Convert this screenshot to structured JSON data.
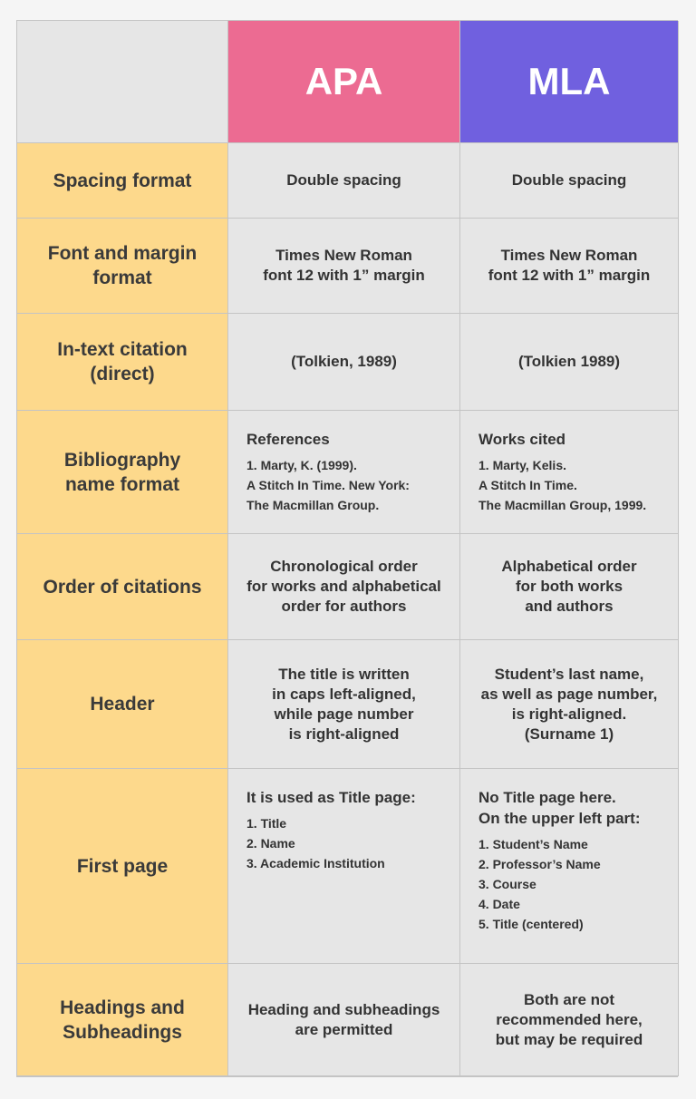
{
  "table": {
    "columns": [
      "APA",
      "MLA"
    ],
    "rows": [
      {
        "label": [
          "Spacing format"
        ],
        "apa": {
          "lines": [
            "Double spacing"
          ]
        },
        "mla": {
          "lines": [
            "Double spacing"
          ]
        }
      },
      {
        "label": [
          "Font and margin",
          "format"
        ],
        "apa": {
          "lines": [
            "Times New Roman",
            "font 12 with 1” margin"
          ]
        },
        "mla": {
          "lines": [
            "Times New Roman",
            "font 12 with 1” margin"
          ]
        }
      },
      {
        "label": [
          "In-text citation",
          "(direct)"
        ],
        "apa": {
          "lines": [
            "(Tolkien, 1989)"
          ]
        },
        "mla": {
          "lines": [
            "(Tolkien 1989)"
          ]
        }
      },
      {
        "label": [
          "Bibliography",
          "name format"
        ],
        "apa": {
          "heading": [
            "References"
          ],
          "items": [
            "1. Marty, K. (1999).",
            "A Stitch In Time. New York:",
            "The Macmillan Group."
          ]
        },
        "mla": {
          "heading": [
            "Works cited"
          ],
          "items": [
            "1. Marty, Kelis.",
            "A Stitch In Time.",
            "The Macmillan Group, 1999."
          ]
        }
      },
      {
        "label": [
          "Order of citations"
        ],
        "apa": {
          "lines": [
            "Chronological order",
            "for works and alphabetical",
            "order for authors"
          ]
        },
        "mla": {
          "lines": [
            "Alphabetical order",
            "for both works",
            "and authors"
          ]
        }
      },
      {
        "label": [
          "Header"
        ],
        "apa": {
          "lines": [
            "The title is written",
            "in caps left-aligned,",
            "while page number",
            "is right-aligned"
          ]
        },
        "mla": {
          "lines": [
            "Student’s last name,",
            "as well as page number,",
            "is right-aligned.",
            "(Surname 1)"
          ]
        }
      },
      {
        "label": [
          "First page"
        ],
        "apa": {
          "heading": [
            "It is used as Title page:"
          ],
          "items": [
            "1. Title",
            "2. Name",
            "3. Academic Institution"
          ]
        },
        "mla": {
          "heading": [
            "No Title page here.",
            "On the upper left part:"
          ],
          "items": [
            "1. Student’s Name",
            "2. Professor’s Name",
            "3. Course",
            "4. Date",
            "5. Title (centered)"
          ]
        }
      },
      {
        "label": [
          "Headings and",
          "Subheadings"
        ],
        "apa": {
          "lines": [
            "Heading and subheadings",
            "are permitted"
          ]
        },
        "mla": {
          "lines": [
            "Both are not",
            "recommended here,",
            "but may be required"
          ]
        }
      }
    ]
  }
}
